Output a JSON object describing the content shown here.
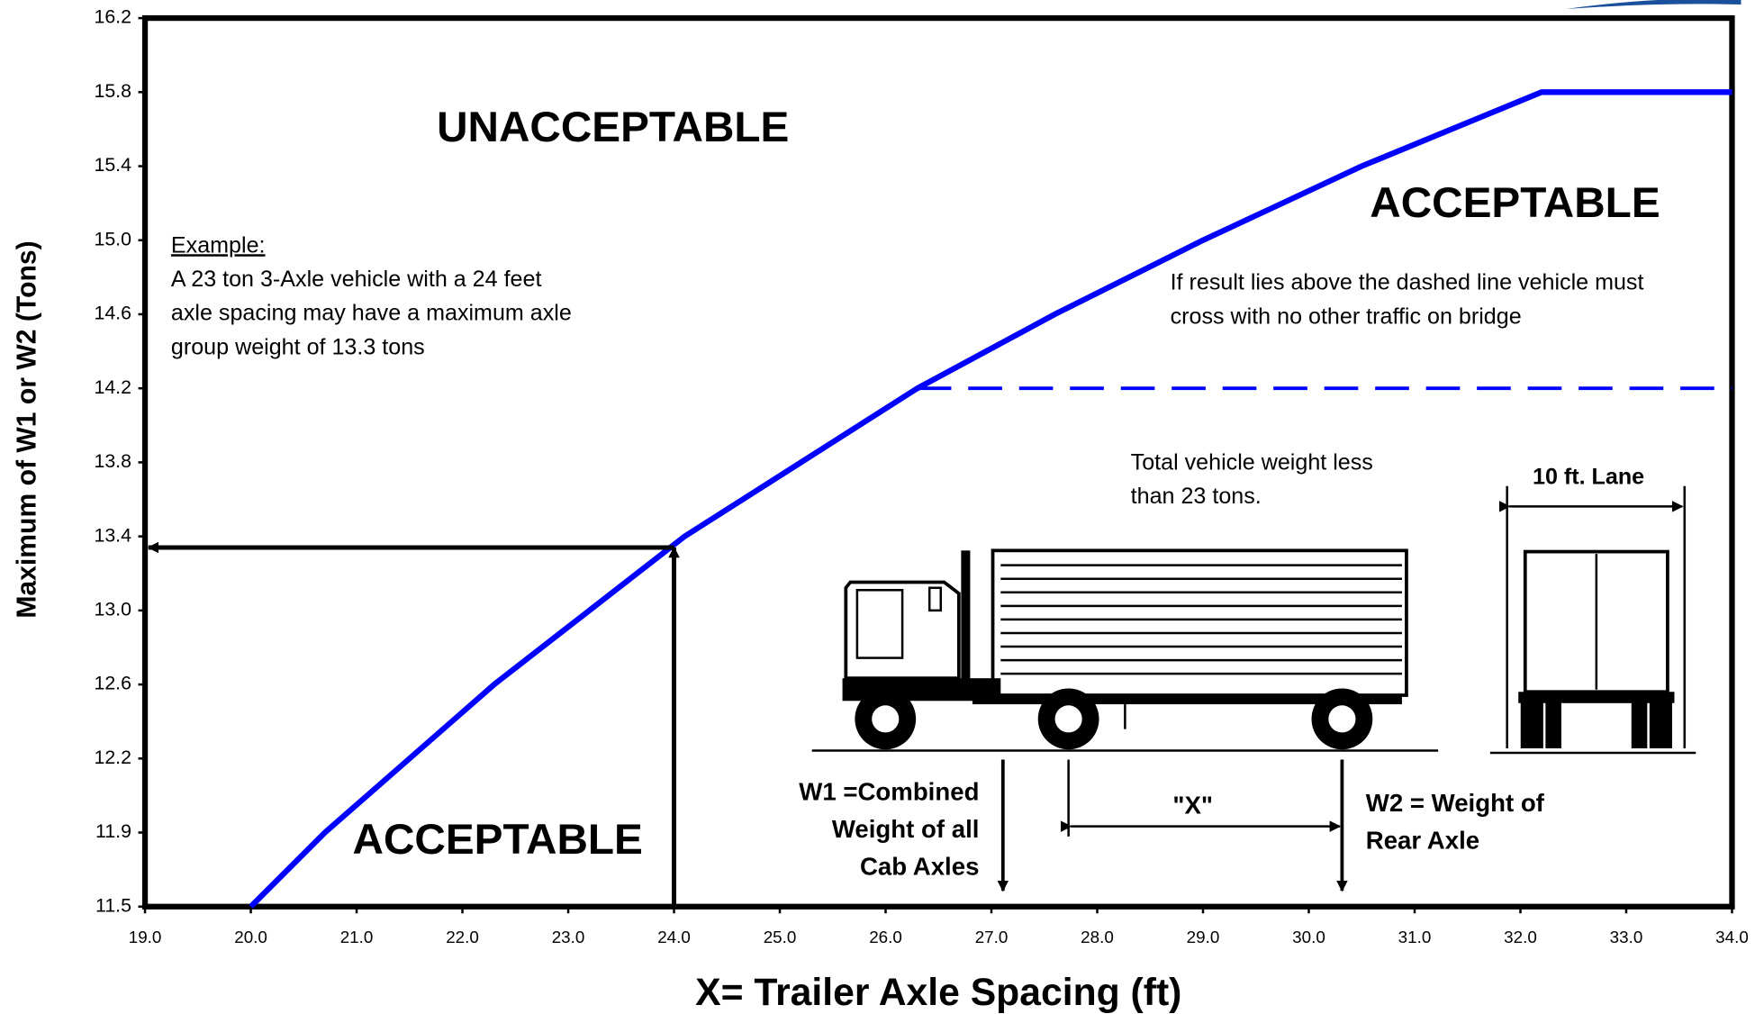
{
  "chart_data": {
    "type": "line",
    "x_label": "X= Trailer Axle Spacing (ft)",
    "y_label": "Maximum of  W1 or  W2 (Tons)",
    "xlim": [
      19,
      34
    ],
    "xticks": [
      {
        "value": 19,
        "label": "19.0"
      },
      {
        "value": 20,
        "label": "20.0"
      },
      {
        "value": 21,
        "label": "21.0"
      },
      {
        "value": 22,
        "label": "22.0"
      },
      {
        "value": 23,
        "label": "23.0"
      },
      {
        "value": 24,
        "label": "24.0"
      },
      {
        "value": 25,
        "label": "25.0"
      },
      {
        "value": 26,
        "label": "26.0"
      },
      {
        "value": 27,
        "label": "27.0"
      },
      {
        "value": 28,
        "label": "28.0"
      },
      {
        "value": 29,
        "label": "29.0"
      },
      {
        "value": 30,
        "label": "30.0"
      },
      {
        "value": 31,
        "label": "31.0"
      },
      {
        "value": 32,
        "label": "32.0"
      },
      {
        "value": 33,
        "label": "33.0"
      },
      {
        "value": 34,
        "label": "34.0"
      }
    ],
    "ylim": [
      11.5,
      16.2
    ],
    "yticks": [
      11.5,
      11.9,
      12.2,
      12.6,
      {
        "value": 13,
        "label": "13.0"
      },
      13.4,
      13.8,
      14.2,
      14.6,
      {
        "value": 15,
        "label": "15.0"
      },
      15.4,
      15.8,
      16.2
    ],
    "series": [
      {
        "color": "#0000ff",
        "x": [
          20.0,
          20.7,
          21.5,
          22.3,
          23.2,
          24.1,
          25.2,
          26.3,
          27.6,
          29.0,
          30.5,
          32.2,
          34.0
        ],
        "values": [
          11.5,
          11.9,
          12.2,
          12.6,
          13.0,
          13.4,
          13.8,
          14.2,
          14.6,
          15.0,
          15.4,
          15.8,
          15.8
        ]
      },
      {
        "color": "#0000ff",
        "dashed": true,
        "x": [
          26.3,
          34.0
        ],
        "values": [
          14.2,
          14.2
        ]
      }
    ],
    "example_point": {
      "x": 24.0,
      "y": 13.34
    },
    "annotations": {
      "unacceptable": "UNACCEPTABLE",
      "acceptable_upper": "ACCEPTABLE",
      "acceptable_lower": "ACCEPTABLE",
      "example_heading": "Example:",
      "example_lines": [
        "A 23 ton 3-Axle vehicle with a 24 feet",
        "axle spacing may have a maximum axle",
        "group weight of 13.3 tons"
      ],
      "dashed_note": [
        "If result lies above the dashed line vehicle must",
        "cross with no other traffic on bridge"
      ],
      "total_weight": [
        "Total vehicle weight less",
        "than 23 tons."
      ],
      "lane": "10 ft. Lane",
      "w1": [
        "W1 =Combined",
        "Weight of all",
        "Cab Axles"
      ],
      "x_marker": "\"X\"",
      "w2": [
        "W2 = Weight of",
        "Rear Axle"
      ]
    }
  }
}
